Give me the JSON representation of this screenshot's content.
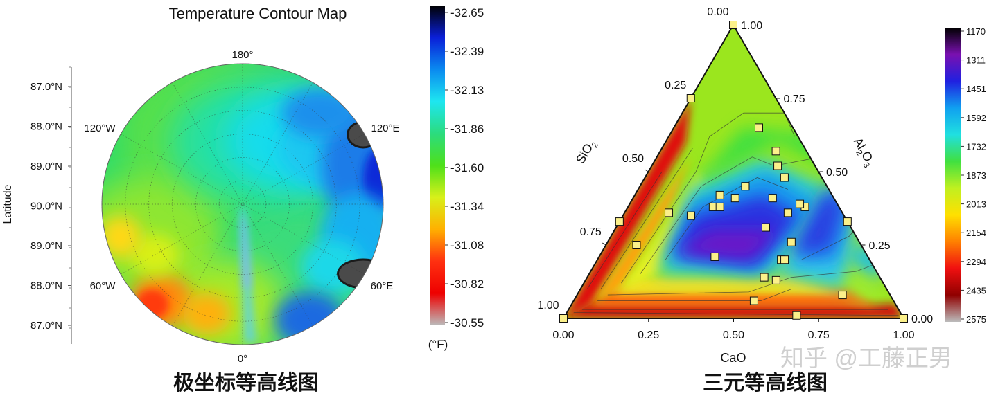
{
  "left_panel": {
    "caption": "极坐标等高线图"
  },
  "right_panel": {
    "caption": "三元等高线图"
  },
  "watermark": "知乎 @工藤正男",
  "chart_data": [
    {
      "type": "heatmap",
      "subtype": "polar-contour",
      "title": "Temperature Contour Map",
      "ylabel": "Latitude",
      "radial_ticks": [
        "87.0°N",
        "88.0°N",
        "89.0°N",
        "90.0°N",
        "89.0°N",
        "88.0°N",
        "87.0°N"
      ],
      "angle_labels": [
        "180°",
        "120°E",
        "60°E",
        "0°",
        "60°W",
        "120°W"
      ],
      "colorbar": {
        "ticks": [
          "-32.65",
          "-32.39",
          "-32.13",
          "-31.86",
          "-31.60",
          "-31.34",
          "-31.08",
          "-30.82",
          "-30.55"
        ],
        "unit_label": "(°F)",
        "range": [
          -32.65,
          -30.55
        ],
        "colors": [
          "#000000",
          "#0a1fd8",
          "#0a8af0",
          "#1ee6f0",
          "#2bdc7e",
          "#4ee01a",
          "#d8f01a",
          "#ffb000",
          "#ff3010",
          "#ee0000",
          "#bbbbbb"
        ]
      },
      "grid": true,
      "regions": [
        {
          "desc": "cold band",
          "angle_range_deg": [
            100,
            160
          ],
          "value": -32.3
        },
        {
          "desc": "coldest spot",
          "angle_deg": 115,
          "value": -32.65
        },
        {
          "desc": "coldest spot",
          "angle_deg": 145,
          "value": -32.65
        },
        {
          "desc": "warm spot",
          "angle_deg": -40,
          "value": -30.7
        },
        {
          "desc": "warm spot",
          "angle_deg": -20,
          "value": -30.9
        },
        {
          "desc": "center spike",
          "angle_deg": 0,
          "value": -32.1
        }
      ]
    },
    {
      "type": "heatmap",
      "subtype": "ternary-contour",
      "axes": {
        "bottom": {
          "label": "CaO",
          "ticks": [
            "0.00",
            "0.25",
            "0.50",
            "0.75",
            "1.00"
          ]
        },
        "left": {
          "label": "SiO2",
          "ticks": [
            "0.00",
            "0.25",
            "0.50",
            "0.75",
            "1.00"
          ]
        },
        "right": {
          "label": "Al2O3",
          "ticks": [
            "1.00",
            "0.75",
            "0.50",
            "0.25",
            "0.00"
          ]
        }
      },
      "colorbar": {
        "ticks": [
          "1170",
          "1311",
          "1451",
          "1592",
          "1732",
          "1873",
          "2013",
          "2154",
          "2294",
          "2435",
          "2575"
        ],
        "range": [
          1170,
          2575
        ],
        "colors": [
          "#000000",
          "#7a10b0",
          "#2020e0",
          "#10a0f0",
          "#20e0e0",
          "#40e040",
          "#c0f020",
          "#ffe000",
          "#ff8000",
          "#f01010",
          "#900000",
          "#bbbbbb"
        ]
      },
      "points": [
        {
          "CaO": 0.0,
          "Al2O3": 1.0
        },
        {
          "CaO": 0.0,
          "Al2O3": 0.75
        },
        {
          "CaO": 0.25,
          "Al2O3": 0.65
        },
        {
          "CaO": 0.34,
          "Al2O3": 0.57
        },
        {
          "CaO": 0.37,
          "Al2O3": 0.52
        },
        {
          "CaO": 0.31,
          "Al2O3": 0.45
        },
        {
          "CaO": 0.3,
          "Al2O3": 0.41
        },
        {
          "CaO": 0.25,
          "Al2O3": 0.38
        },
        {
          "CaO": 0.2,
          "Al2O3": 0.35
        },
        {
          "CaO": 0.13,
          "Al2O3": 0.36
        },
        {
          "CaO": 0.09,
          "Al2O3": 0.25
        },
        {
          "CaO": 0.0,
          "Al2O3": 0.33
        },
        {
          "CaO": 0.27,
          "Al2O3": 0.38
        },
        {
          "CaO": 0.25,
          "Al2O3": 0.42
        },
        {
          "CaO": 0.41,
          "Al2O3": 0.48
        },
        {
          "CaO": 0.41,
          "Al2O3": 0.41
        },
        {
          "CaO": 0.52,
          "Al2O3": 0.38
        },
        {
          "CaO": 0.48,
          "Al2O3": 0.36
        },
        {
          "CaO": 0.5,
          "Al2O3": 0.39
        },
        {
          "CaO": 0.44,
          "Al2O3": 0.31
        },
        {
          "CaO": 0.67,
          "Al2O3": 0.33
        },
        {
          "CaO": 0.54,
          "Al2O3": 0.26
        },
        {
          "CaO": 0.54,
          "Al2O3": 0.2
        },
        {
          "CaO": 0.34,
          "Al2O3": 0.21
        },
        {
          "CaO": 0.52,
          "Al2O3": 0.14
        },
        {
          "CaO": 0.56,
          "Al2O3": 0.13
        },
        {
          "CaO": 0.53,
          "Al2O3": 0.06
        },
        {
          "CaO": 0.78,
          "Al2O3": 0.08
        },
        {
          "CaO": 0.68,
          "Al2O3": 0.01
        },
        {
          "CaO": 1.0,
          "Al2O3": 0.0
        },
        {
          "CaO": 0.0,
          "Al2O3": 0.0
        },
        {
          "CaO": 0.55,
          "Al2O3": 0.2
        }
      ]
    }
  ]
}
